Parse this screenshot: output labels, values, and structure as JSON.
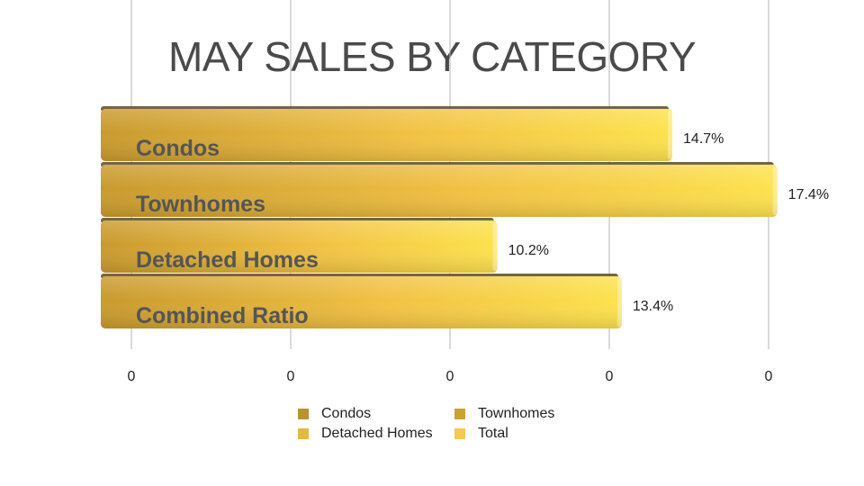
{
  "chart_data": {
    "type": "bar",
    "orientation": "horizontal",
    "title": "MAY SALES BY CATEGORY",
    "categories": [
      "Condos",
      "Townhomes",
      "Detached Homes",
      "Combined Ratio"
    ],
    "values": [
      14.7,
      17.4,
      10.2,
      13.4
    ],
    "value_labels": [
      "14.7%",
      "17.4%",
      "10.2%",
      "13.4%"
    ],
    "x_tick_labels": [
      "0",
      "0",
      "0",
      "0",
      "0"
    ],
    "xlim": [
      0,
      0.2
    ],
    "grid": true,
    "legend_position": "bottom",
    "legend": [
      {
        "name": "Condos",
        "color": "#b8932e"
      },
      {
        "name": "Townhomes",
        "color": "#c9a232"
      },
      {
        "name": "Detached Homes",
        "color": "#e6b83e"
      },
      {
        "name": "Total",
        "color": "#f5c754"
      }
    ],
    "bar_colors": {
      "left": "#c99a2e",
      "mid": "#f2c244",
      "right": "#fde24e"
    },
    "category_label_color": "#555555"
  }
}
